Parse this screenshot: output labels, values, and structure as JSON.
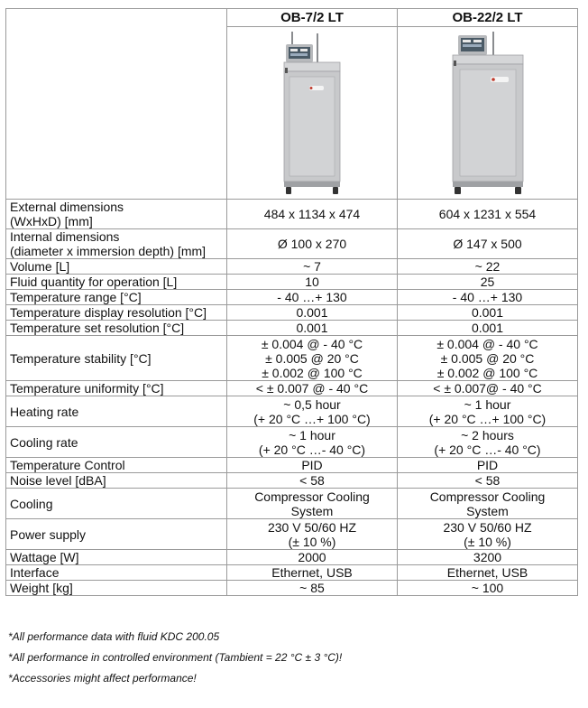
{
  "products": [
    {
      "name": "OB-7/2 LT",
      "image": "oil-bath-unit-image"
    },
    {
      "name": "OB-22/2 LT",
      "image": "oil-bath-unit-image"
    }
  ],
  "rows": [
    {
      "label": [
        "External dimensions",
        "(WxHxD) [mm]"
      ],
      "v1": [
        "484 x 1134 x 474"
      ],
      "v2": [
        "604 x 1231 x 554"
      ],
      "h": 33
    },
    {
      "label": [
        "Internal dimensions",
        "(diameter x immersion depth) [mm]"
      ],
      "v1": [
        "Ø 100 x 270"
      ],
      "v2": [
        "Ø 147 x 500"
      ],
      "h": 33
    },
    {
      "label": [
        "Volume [L]"
      ],
      "v1": [
        "~ 7"
      ],
      "v2": [
        "~ 22"
      ],
      "h": 17
    },
    {
      "label": [
        "Fluid quantity for operation [L]"
      ],
      "v1": [
        "10"
      ],
      "v2": [
        "25"
      ],
      "h": 17
    },
    {
      "label": [
        "Temperature range [°C]"
      ],
      "v1": [
        "- 40 …+ 130"
      ],
      "v2": [
        "- 40 …+ 130"
      ],
      "h": 17
    },
    {
      "label": [
        "Temperature display resolution [°C]"
      ],
      "v1": [
        "0.001"
      ],
      "v2": [
        "0.001"
      ],
      "h": 17
    },
    {
      "label": [
        "Temperature set resolution [°C]"
      ],
      "v1": [
        "0.001"
      ],
      "v2": [
        "0.001"
      ],
      "h": 17
    },
    {
      "label": [
        "Temperature stability [°C]"
      ],
      "v1": [
        "± 0.004 @ - 40 °C",
        "± 0.005 @ 20 °C",
        "± 0.002 @ 100 °C"
      ],
      "v2": [
        "± 0.004 @ - 40 °C",
        "± 0.005 @ 20 °C",
        "± 0.002 @ 100 °C"
      ],
      "h": 50
    },
    {
      "label": [
        "Temperature uniformity [°C]"
      ],
      "v1": [
        "< ± 0.007 @ - 40 °C"
      ],
      "v2": [
        "< ± 0.007@ - 40 °C"
      ],
      "h": 17
    },
    {
      "label": [
        "Heating rate"
      ],
      "v1": [
        "~ 0,5 hour",
        "(+ 20 °C …+ 100 °C)"
      ],
      "v2": [
        "~ 1 hour",
        "(+ 20 °C …+ 100 °C)"
      ],
      "h": 34
    },
    {
      "label": [
        "Cooling rate"
      ],
      "v1": [
        "~ 1 hour",
        "(+ 20 °C …- 40 °C)"
      ],
      "v2": [
        "~ 2 hours",
        "(+ 20 °C …- 40 °C)"
      ],
      "h": 34
    },
    {
      "label": [
        "Temperature Control"
      ],
      "v1": [
        "PID"
      ],
      "v2": [
        "PID"
      ],
      "h": 17
    },
    {
      "label": [
        "Noise level [dBA]"
      ],
      "v1": [
        "< 58"
      ],
      "v2": [
        "< 58"
      ],
      "h": 17
    },
    {
      "label": [
        "Cooling"
      ],
      "v1": [
        "Compressor Cooling",
        "System"
      ],
      "v2": [
        "Compressor Cooling",
        "System"
      ],
      "h": 34
    },
    {
      "label": [
        "Power supply"
      ],
      "v1": [
        "230 V 50/60 HZ",
        "(± 10 %)"
      ],
      "v2": [
        "230 V 50/60 HZ",
        "(± 10 %)"
      ],
      "h": 34
    },
    {
      "label": [
        "Wattage [W]"
      ],
      "v1": [
        "2000"
      ],
      "v2": [
        "3200"
      ],
      "h": 17
    },
    {
      "label": [
        "Interface"
      ],
      "v1": [
        "Ethernet, USB"
      ],
      "v2": [
        "Ethernet, USB"
      ],
      "h": 17
    },
    {
      "label": [
        "Weight [kg]"
      ],
      "v1": [
        "~ 85"
      ],
      "v2": [
        "~ 100"
      ],
      "h": 17
    }
  ],
  "notes": [
    "*All performance data with fluid KDC 200.05",
    "*All performance in controlled environment (Tambient = 22 °C ± 3 °C)!",
    "*Accessories might affect performance!"
  ],
  "colors": {
    "unit_body": "#c8c9cb",
    "unit_shadow": "#9fa1a4",
    "screen": "#4a5a66",
    "accent": "#c0392b"
  }
}
